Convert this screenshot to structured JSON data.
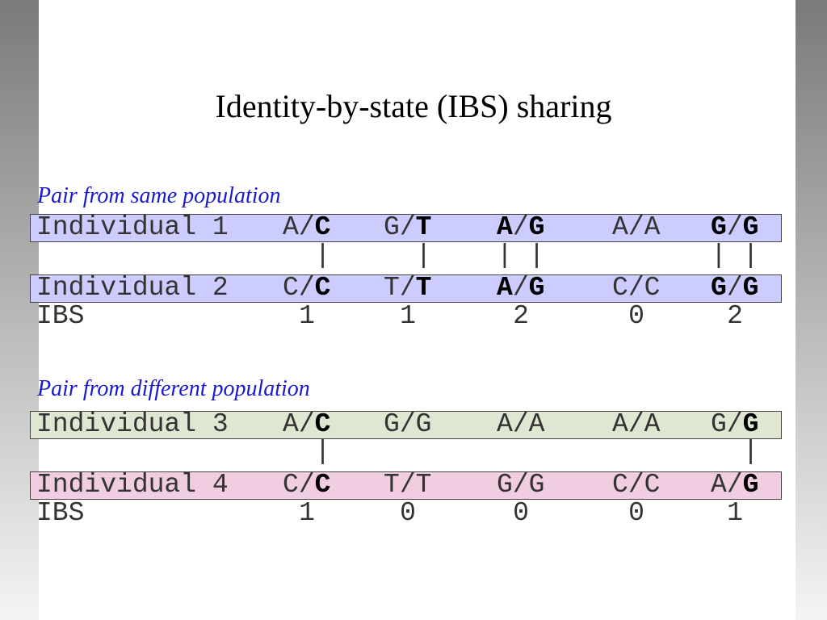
{
  "title": "Identity-by-state (IBS) sharing",
  "pairs": [
    {
      "heading": "Pair from same population",
      "individuals": [
        {
          "label": "Individual 1",
          "color": "#ccccff",
          "genotypes": [
            {
              "parts": [
                "A",
                "/",
                "C"
              ],
              "bold": [
                false,
                false,
                true
              ]
            },
            {
              "parts": [
                "G",
                "/",
                "T"
              ],
              "bold": [
                false,
                false,
                true
              ]
            },
            {
              "parts": [
                "A",
                "/",
                "G"
              ],
              "bold": [
                true,
                false,
                true
              ]
            },
            {
              "parts": [
                "A",
                "/",
                "A"
              ],
              "bold": [
                false,
                false,
                false
              ]
            },
            {
              "parts": [
                "G",
                "/",
                "G"
              ],
              "bold": [
                true,
                false,
                true
              ]
            }
          ]
        },
        {
          "label": "Individual 2",
          "color": "#ccccff",
          "genotypes": [
            {
              "parts": [
                "C",
                "/",
                "C"
              ],
              "bold": [
                false,
                false,
                true
              ]
            },
            {
              "parts": [
                "T",
                "/",
                "T"
              ],
              "bold": [
                false,
                false,
                true
              ]
            },
            {
              "parts": [
                "A",
                "/",
                "G"
              ],
              "bold": [
                true,
                false,
                true
              ]
            },
            {
              "parts": [
                "C",
                "/",
                "C"
              ],
              "bold": [
                false,
                false,
                false
              ]
            },
            {
              "parts": [
                "G",
                "/",
                "G"
              ],
              "bold": [
                true,
                false,
                true
              ]
            }
          ]
        }
      ],
      "links": [
        "  |",
        "  |",
        "| |",
        null,
        "| |"
      ],
      "ibs_label": "IBS",
      "ibs": [
        1,
        1,
        2,
        0,
        2
      ]
    },
    {
      "heading": "Pair from different population",
      "individuals": [
        {
          "label": "Individual 3",
          "color": "#dfe6d2",
          "genotypes": [
            {
              "parts": [
                "A",
                "/",
                "C"
              ],
              "bold": [
                false,
                false,
                true
              ]
            },
            {
              "parts": [
                "G",
                "/",
                "G"
              ],
              "bold": [
                false,
                false,
                false
              ]
            },
            {
              "parts": [
                "A",
                "/",
                "A"
              ],
              "bold": [
                false,
                false,
                false
              ]
            },
            {
              "parts": [
                "A",
                "/",
                "A"
              ],
              "bold": [
                false,
                false,
                false
              ]
            },
            {
              "parts": [
                "G",
                "/",
                "G"
              ],
              "bold": [
                false,
                false,
                true
              ]
            }
          ]
        },
        {
          "label": "Individual 4",
          "color": "#f0cde0",
          "genotypes": [
            {
              "parts": [
                "C",
                "/",
                "C"
              ],
              "bold": [
                false,
                false,
                true
              ]
            },
            {
              "parts": [
                "T",
                "/",
                "T"
              ],
              "bold": [
                false,
                false,
                false
              ]
            },
            {
              "parts": [
                "G",
                "/",
                "G"
              ],
              "bold": [
                false,
                false,
                false
              ]
            },
            {
              "parts": [
                "C",
                "/",
                "C"
              ],
              "bold": [
                false,
                false,
                false
              ]
            },
            {
              "parts": [
                "A",
                "/",
                "G"
              ],
              "bold": [
                false,
                false,
                true
              ]
            }
          ]
        }
      ],
      "links": [
        "  |",
        null,
        null,
        null,
        "  |"
      ],
      "ibs_label": "IBS",
      "ibs": [
        1,
        0,
        0,
        0,
        1
      ]
    }
  ]
}
